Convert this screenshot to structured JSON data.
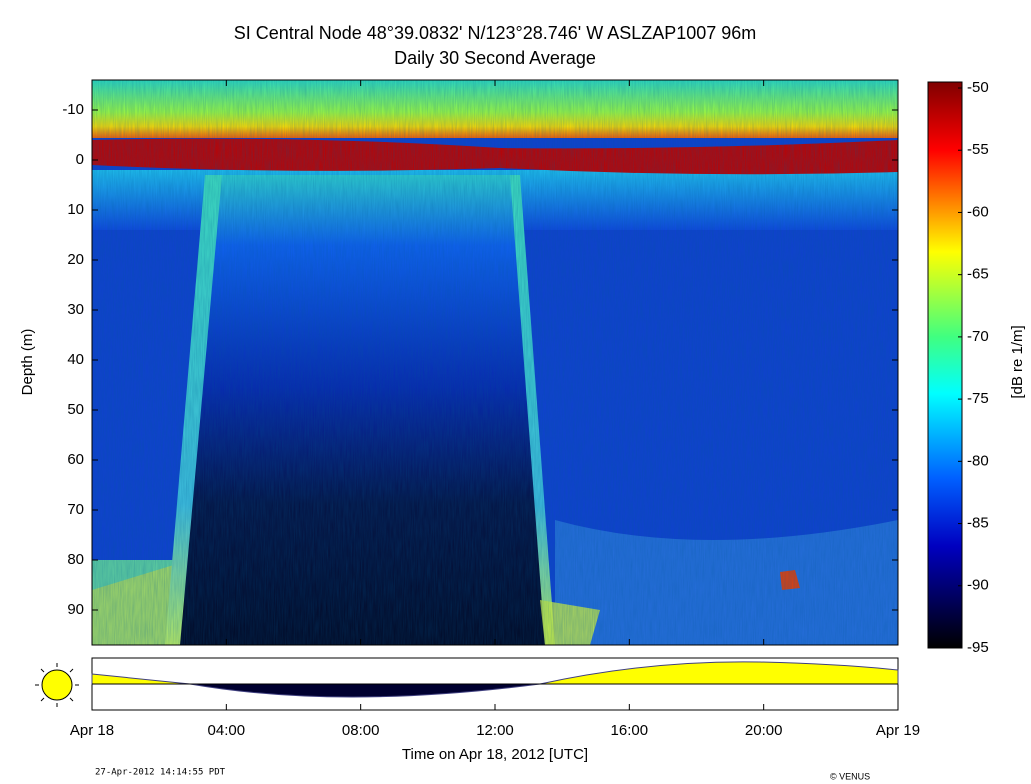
{
  "chart_data": {
    "type": "heatmap",
    "title": "SI   Central Node   48°39.0832' N/123°28.746' W   ASLZAP1007   96m",
    "subtitle": "Daily 30 Second Average",
    "y_label": "Depth (m)",
    "x_label": "Time on Apr 18, 2012 [UTC]",
    "ylim": [
      -16,
      97
    ],
    "y_inverted": true,
    "yticks": [
      -10,
      0,
      10,
      20,
      30,
      40,
      50,
      60,
      70,
      80,
      90
    ],
    "xlim": [
      0,
      24
    ],
    "xticks": [
      {
        "value": 0,
        "label": "Apr 18"
      },
      {
        "value": 4,
        "label": "04:00"
      },
      {
        "value": 8,
        "label": "08:00"
      },
      {
        "value": 12,
        "label": "12:00"
      },
      {
        "value": 16,
        "label": "16:00"
      },
      {
        "value": 20,
        "label": "20:00"
      },
      {
        "value": 24,
        "label": "Apr 19"
      }
    ],
    "clim": [
      -95,
      -50
    ],
    "cticks": [
      -50,
      -55,
      -60,
      -65,
      -70,
      -75,
      -80,
      -85,
      -90,
      -95
    ],
    "colorbar_label": "[dB re 1/m]",
    "timestamp": "27-Apr-2012 14:14:55 PDT",
    "credit": "© VENUS"
  }
}
